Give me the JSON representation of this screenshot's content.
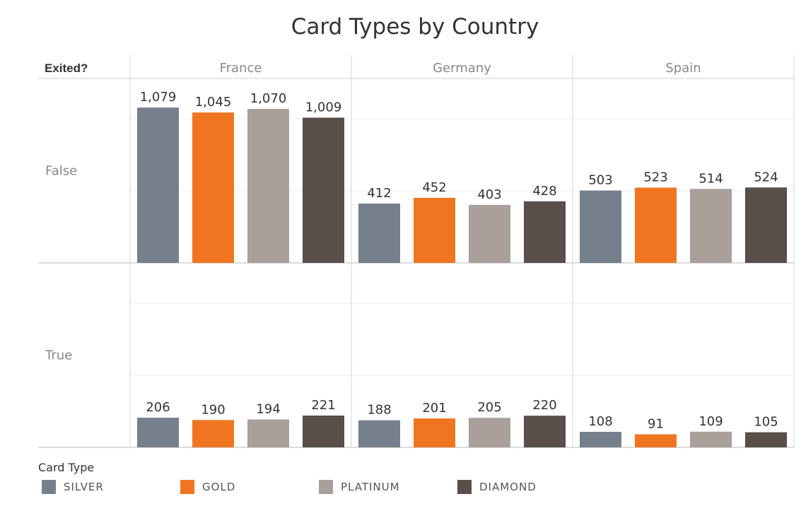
{
  "title": "Card Types by Country",
  "row_header": "Exited?",
  "legend_title": "Card Type",
  "chart_data": {
    "type": "bar",
    "title": "Card Types by Country",
    "columns": [
      "France",
      "Germany",
      "Spain"
    ],
    "rows": [
      "False",
      "True"
    ],
    "row_field": "Exited?",
    "categories": [
      "SILVER",
      "GOLD",
      "PLATINUM",
      "DIAMOND"
    ],
    "colors": {
      "SILVER": "#76808d",
      "GOLD": "#f07521",
      "PLATINUM": "#a9a09b",
      "DIAMOND": "#594e4a"
    },
    "values": {
      "False": {
        "France": [
          1079,
          1045,
          1070,
          1009
        ],
        "Germany": [
          412,
          452,
          403,
          428
        ],
        "Spain": [
          503,
          523,
          514,
          524
        ]
      },
      "True": {
        "France": [
          206,
          190,
          194,
          221
        ],
        "Germany": [
          188,
          201,
          205,
          220
        ],
        "Spain": [
          108,
          91,
          109,
          105
        ]
      }
    },
    "legend": [
      "SILVER",
      "GOLD",
      "PLATINUM",
      "DIAMOND"
    ],
    "legend_position": "bottom-left",
    "grid": true
  }
}
